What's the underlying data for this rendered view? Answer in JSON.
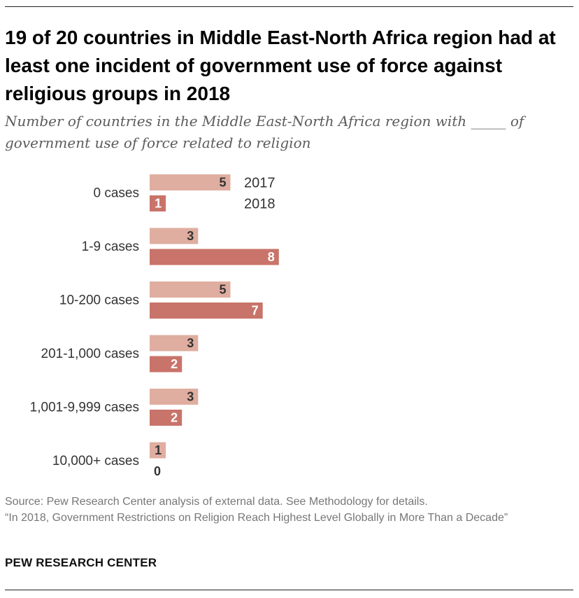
{
  "title": "19 of 20 countries in Middle East-North Africa region had at least one incident of government use of force against religious groups in 2018",
  "subtitle": "Number of countries in the Middle East-North Africa region with _____ of government use of force related to religion",
  "source_line": "Source: Pew Research Center analysis of external data. See Methodology for details.",
  "report_line": "“In 2018, Government Restrictions on Religion Reach Highest Level Globally in More Than a Decade”",
  "brand": "PEW RESEARCH CENTER",
  "colors": {
    "series_2017": "#dfaea0",
    "series_2018": "#c9746a",
    "label_dark": "#333333",
    "label_light": "#ffffff"
  },
  "chart_data": {
    "type": "bar",
    "orientation": "horizontal",
    "categories": [
      "0 cases",
      "1-9 cases",
      "10-200 cases",
      "201-1,000 cases",
      "1,001-9,999 cases",
      "10,000+ cases"
    ],
    "series": [
      {
        "name": "2017",
        "values": [
          5,
          3,
          5,
          3,
          3,
          1
        ]
      },
      {
        "name": "2018",
        "values": [
          1,
          8,
          7,
          2,
          2,
          0
        ]
      }
    ],
    "title": "19 of 20 countries in Middle East-North Africa region had at least one incident of government use of force against religious groups in 2018",
    "xlabel": "",
    "ylabel": "",
    "legend": "inline, beside first category bars",
    "grid": false
  }
}
